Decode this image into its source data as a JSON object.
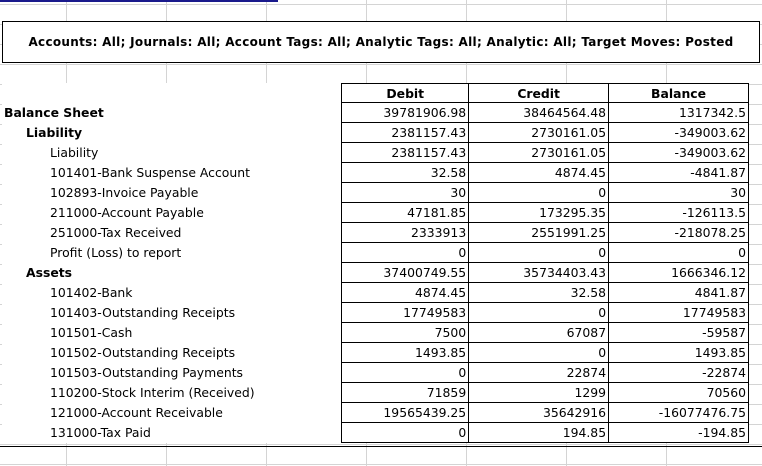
{
  "filter_text": "Accounts: All; Journals: All; Account Tags: All; Analytic Tags: All; Analytic: All; Target Moves: Posted",
  "columns": {
    "debit": "Debit",
    "credit": "Credit",
    "balance": "Balance"
  },
  "rows": [
    {
      "label": "Balance Sheet",
      "level": 0,
      "debit": "39781906.98",
      "credit": "38464564.48",
      "balance": "1317342.5"
    },
    {
      "label": "Liability",
      "level": 1,
      "debit": "2381157.43",
      "credit": "2730161.05",
      "balance": "-349003.62"
    },
    {
      "label": "Liability",
      "level": 2,
      "debit": "2381157.43",
      "credit": "2730161.05",
      "balance": "-349003.62"
    },
    {
      "label": "101401-Bank Suspense Account",
      "level": 2,
      "debit": "32.58",
      "credit": "4874.45",
      "balance": "-4841.87"
    },
    {
      "label": "102893-Invoice Payable",
      "level": 2,
      "debit": "30",
      "credit": "0",
      "balance": "30"
    },
    {
      "label": "211000-Account Payable",
      "level": 2,
      "debit": "47181.85",
      "credit": "173295.35",
      "balance": "-126113.5"
    },
    {
      "label": "251000-Tax Received",
      "level": 2,
      "debit": "2333913",
      "credit": "2551991.25",
      "balance": "-218078.25"
    },
    {
      "label": "Profit (Loss) to report",
      "level": 2,
      "debit": "0",
      "credit": "0",
      "balance": "0"
    },
    {
      "label": "Assets",
      "level": 1,
      "debit": "37400749.55",
      "credit": "35734403.43",
      "balance": "1666346.12"
    },
    {
      "label": "101402-Bank",
      "level": 2,
      "debit": "4874.45",
      "credit": "32.58",
      "balance": "4841.87"
    },
    {
      "label": "101403-Outstanding Receipts",
      "level": 2,
      "debit": "17749583",
      "credit": "0",
      "balance": "17749583"
    },
    {
      "label": "101501-Cash",
      "level": 2,
      "debit": "7500",
      "credit": "67087",
      "balance": "-59587"
    },
    {
      "label": "101502-Outstanding Receipts",
      "level": 2,
      "debit": "1493.85",
      "credit": "0",
      "balance": "1493.85"
    },
    {
      "label": "101503-Outstanding Payments",
      "level": 2,
      "debit": "0",
      "credit": "22874",
      "balance": "-22874"
    },
    {
      "label": "110200-Stock Interim (Received)",
      "level": 2,
      "debit": "71859",
      "credit": "1299",
      "balance": "70560"
    },
    {
      "label": "121000-Account Receivable",
      "level": 2,
      "debit": "19565439.25",
      "credit": "35642916",
      "balance": "-16077476.75"
    },
    {
      "label": "131000-Tax Paid",
      "level": 2,
      "debit": "0",
      "credit": "194.85",
      "balance": "-194.85"
    }
  ]
}
